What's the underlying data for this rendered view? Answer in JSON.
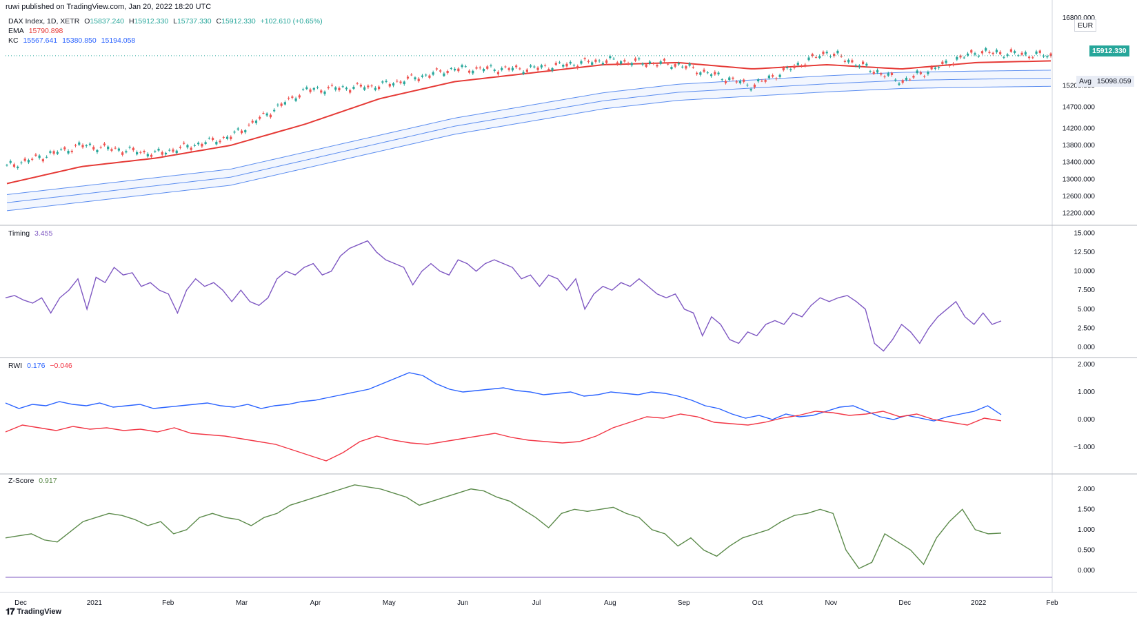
{
  "header": {
    "published": "ruwi published on TradingView.com, Jan 20, 2022 18:20 UTC"
  },
  "main_legend": {
    "symbol": "DAX Index, 1D, XETR",
    "o_label": "O",
    "o": "15837.240",
    "h_label": "H",
    "h": "15912.330",
    "l_label": "L",
    "l": "15737.330",
    "c_label": "C",
    "c": "15912.330",
    "change": "+102.610 (+0.65%)",
    "ema_label": "EMA",
    "ema_value": "15790.898",
    "kc_label": "KC",
    "kc_upper": "15567.641",
    "kc_mid": "15380.850",
    "kc_lower": "15194.058"
  },
  "price_badges": {
    "currency": "EUR",
    "last": "15912.330",
    "avg_label": "Avg",
    "avg": "15098.059"
  },
  "timing_legend": {
    "label": "Timing",
    "value": "3.455"
  },
  "rwi_legend": {
    "label": "RWI",
    "high": "0.176",
    "low": "−0.046"
  },
  "zscore_legend": {
    "label": "Z-Score",
    "value": "0.917"
  },
  "footer": {
    "brand": "TradingView"
  },
  "colors": {
    "up": "#26a69a",
    "down": "#ef5350",
    "ema": "#e53935",
    "kc": "#5b8def",
    "timing": "#7e57c2",
    "rwi_high": "#2962ff",
    "rwi_low": "#f23645",
    "zscore": "#5b8a4a"
  },
  "chart_data": [
    {
      "type": "candlestick",
      "title": "DAX Index, 1D, XETR",
      "x_ticks": [
        "Dec",
        "2021",
        "Feb",
        "Mar",
        "Apr",
        "May",
        "Jun",
        "Jul",
        "Aug",
        "Sep",
        "Oct",
        "Nov",
        "Dec",
        "2022",
        "Feb"
      ],
      "y_ticks": [
        16800,
        15200,
        14700,
        14200,
        13800,
        13400,
        13000,
        12600,
        12200
      ],
      "y_tick_labels": [
        "16800.000",
        "15200.000",
        "14700.000",
        "14200.000",
        "13800.000",
        "13400.000",
        "13000.000",
        "12600.000",
        "12200.000"
      ],
      "ylim": [
        11950,
        16900
      ],
      "series": [
        {
          "name": "DAX",
          "x": [
            "Dec",
            "2021",
            "Feb",
            "Mar",
            "Apr",
            "May",
            "Jun",
            "Jul",
            "Aug",
            "Sep",
            "Oct",
            "Nov",
            "Dec",
            "2022",
            "Jan 20"
          ],
          "values": [
            13300,
            13800,
            13600,
            14000,
            15100,
            15200,
            15600,
            15600,
            15800,
            15700,
            15200,
            16000,
            15300,
            16000,
            15912
          ]
        },
        {
          "name": "EMA",
          "x": [
            "Dec",
            "2021",
            "Feb",
            "Mar",
            "Apr",
            "May",
            "Jun",
            "Jul",
            "Aug",
            "Sep",
            "Oct",
            "Nov",
            "Dec",
            "2022",
            "Jan 20"
          ],
          "values": [
            12900,
            13300,
            13500,
            13800,
            14300,
            14900,
            15300,
            15500,
            15700,
            15750,
            15600,
            15700,
            15600,
            15750,
            15791
          ]
        },
        {
          "name": "KC",
          "x": [
            "Dec",
            "2021",
            "Feb",
            "Mar",
            "Apr",
            "May",
            "Jun",
            "Jul",
            "Aug",
            "Sep",
            "Oct",
            "Nov",
            "Dec",
            "2022",
            "Jan 20"
          ],
          "values": [
            12450,
            12650,
            12850,
            13050,
            13450,
            13850,
            14250,
            14550,
            14850,
            15050,
            15150,
            15250,
            15330,
            15360,
            15381
          ]
        }
      ]
    },
    {
      "type": "line",
      "title": "Timing",
      "y_ticks": [
        15,
        12.5,
        10,
        7.5,
        5,
        2.5,
        0
      ],
      "y_tick_labels": [
        "15.000",
        "12.500",
        "10.000",
        "7.500",
        "5.000",
        "2.500",
        "0.000"
      ],
      "ylim": [
        -1,
        15.5
      ],
      "series": [
        {
          "name": "Timing",
          "values": [
            6.5,
            6.8,
            6.2,
            5.8,
            6.5,
            4.5,
            6.5,
            7.5,
            9.0,
            5.0,
            9.2,
            8.5,
            10.5,
            9.5,
            9.8,
            8.0,
            8.5,
            7.5,
            7.0,
            4.5,
            7.5,
            9.0,
            8.0,
            8.5,
            7.5,
            6.0,
            7.5,
            6.0,
            5.5,
            6.5,
            9.0,
            10.0,
            9.5,
            10.5,
            11.0,
            9.5,
            10.0,
            12.0,
            13.0,
            13.5,
            14.0,
            12.5,
            11.5,
            11.0,
            10.5,
            8.2,
            10.0,
            11.0,
            10.0,
            9.5,
            11.5,
            11.0,
            10.0,
            11.0,
            11.5,
            11.0,
            10.5,
            9.0,
            9.5,
            8.0,
            9.5,
            9.0,
            7.5,
            9.0,
            5.0,
            7.0,
            8.0,
            7.5,
            8.5,
            8.0,
            9.0,
            8.0,
            7.0,
            6.5,
            7.0,
            5.0,
            4.5,
            1.5,
            4.0,
            3.0,
            1.0,
            0.5,
            2.0,
            1.5,
            3.0,
            3.5,
            3.0,
            4.5,
            4.0,
            5.5,
            6.5,
            6.0,
            6.5,
            6.8,
            6.0,
            5.0,
            0.5,
            -0.5,
            1.0,
            3.0,
            2.0,
            0.5,
            2.5,
            4.0,
            5.0,
            6.0,
            4.0,
            3.0,
            4.5,
            3.0,
            3.455
          ]
        }
      ]
    },
    {
      "type": "line",
      "title": "RWI",
      "y_ticks": [
        2,
        1,
        0,
        -1
      ],
      "y_tick_labels": [
        "2.000",
        "1.000",
        "0.000",
        "−1.000"
      ],
      "ylim": [
        -1.9,
        2.1
      ],
      "series": [
        {
          "name": "RWI High",
          "values": [
            0.6,
            0.4,
            0.55,
            0.5,
            0.65,
            0.55,
            0.5,
            0.6,
            0.45,
            0.5,
            0.55,
            0.4,
            0.45,
            0.5,
            0.55,
            0.6,
            0.5,
            0.45,
            0.55,
            0.4,
            0.5,
            0.55,
            0.65,
            0.7,
            0.8,
            0.9,
            1.0,
            1.1,
            1.3,
            1.5,
            1.7,
            1.6,
            1.3,
            1.1,
            1.0,
            1.05,
            1.1,
            1.15,
            1.05,
            1.0,
            0.9,
            0.95,
            1.0,
            0.85,
            0.9,
            1.0,
            0.95,
            0.9,
            1.0,
            0.95,
            0.85,
            0.7,
            0.5,
            0.4,
            0.2,
            0.05,
            0.15,
            0.0,
            0.2,
            0.1,
            0.15,
            0.3,
            0.45,
            0.5,
            0.3,
            0.1,
            0.0,
            0.15,
            0.05,
            -0.05,
            0.1,
            0.2,
            0.3,
            0.5,
            0.176
          ]
        },
        {
          "name": "RWI Low",
          "values": [
            -0.45,
            -0.2,
            -0.3,
            -0.4,
            -0.25,
            -0.35,
            -0.3,
            -0.4,
            -0.35,
            -0.45,
            -0.3,
            -0.5,
            -0.55,
            -0.6,
            -0.7,
            -0.8,
            -0.9,
            -1.1,
            -1.3,
            -1.5,
            -1.2,
            -0.8,
            -0.6,
            -0.75,
            -0.85,
            -0.9,
            -0.8,
            -0.7,
            -0.6,
            -0.5,
            -0.65,
            -0.75,
            -0.8,
            -0.85,
            -0.8,
            -0.6,
            -0.3,
            -0.1,
            0.1,
            0.05,
            0.2,
            0.1,
            -0.1,
            -0.15,
            -0.2,
            -0.1,
            0.05,
            0.15,
            0.3,
            0.25,
            0.15,
            0.2,
            0.3,
            0.1,
            0.2,
            0.0,
            -0.1,
            -0.2,
            0.05,
            -0.046
          ]
        }
      ]
    },
    {
      "type": "line",
      "title": "Z-Score",
      "y_ticks": [
        2,
        1.5,
        1,
        0.5,
        0
      ],
      "y_tick_labels": [
        "2.000",
        "1.500",
        "1.000",
        "0.500",
        "0.000"
      ],
      "ylim": [
        -0.2,
        2.3
      ],
      "series": [
        {
          "name": "Z-Score",
          "values": [
            0.8,
            0.85,
            0.9,
            0.75,
            0.7,
            0.95,
            1.2,
            1.3,
            1.4,
            1.35,
            1.25,
            1.1,
            1.2,
            0.9,
            1.0,
            1.3,
            1.4,
            1.3,
            1.25,
            1.1,
            1.3,
            1.4,
            1.6,
            1.7,
            1.8,
            1.9,
            2.0,
            2.1,
            2.05,
            2.0,
            1.9,
            1.8,
            1.6,
            1.7,
            1.8,
            1.9,
            2.0,
            1.95,
            1.8,
            1.7,
            1.5,
            1.3,
            1.05,
            1.4,
            1.5,
            1.45,
            1.5,
            1.55,
            1.4,
            1.3,
            1.0,
            0.9,
            0.6,
            0.8,
            0.5,
            0.35,
            0.6,
            0.8,
            0.9,
            1.0,
            1.2,
            1.35,
            1.4,
            1.5,
            1.4,
            0.5,
            0.05,
            0.2,
            0.9,
            0.7,
            0.5,
            0.15,
            0.8,
            1.2,
            1.5,
            1.0,
            0.9,
            0.917
          ]
        }
      ]
    }
  ]
}
